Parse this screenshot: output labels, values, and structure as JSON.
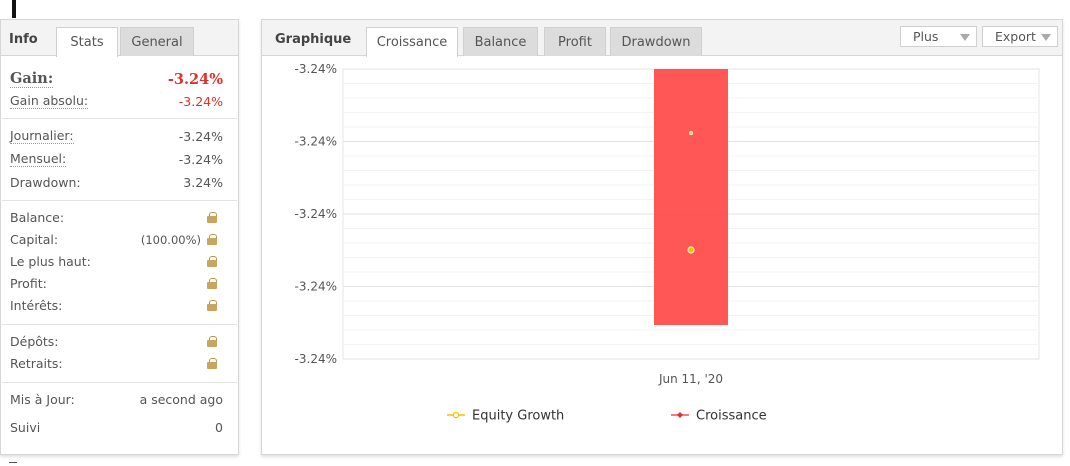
{
  "info": {
    "title": "Info",
    "tabs": [
      {
        "label": "Stats",
        "active": true
      },
      {
        "label": "General",
        "active": false
      }
    ],
    "gain": {
      "label": "Gain:",
      "value": "-3.24%"
    },
    "absolute_gain": {
      "label": "Gain absolu:",
      "value": "-3.24%"
    },
    "daily": {
      "label": "Journalier:",
      "value": "-3.24%"
    },
    "monthly": {
      "label": "Mensuel:",
      "value": "-3.24%"
    },
    "drawdown": {
      "label": "Drawdown:",
      "value": "3.24%"
    },
    "balance": {
      "label": "Balance:"
    },
    "equity": {
      "label": "Capital:",
      "value": "(100.00%)"
    },
    "highest": {
      "label": "Le plus haut:"
    },
    "profit": {
      "label": "Profit:"
    },
    "interest": {
      "label": "Intérêts:"
    },
    "deposits": {
      "label": "Dépôts:"
    },
    "withdrawals": {
      "label": "Retraits:"
    },
    "updated": {
      "label": "Mis à Jour:",
      "value": "a second ago"
    },
    "tracking": {
      "label": "Suivi",
      "value": "0"
    },
    "lock_icon": "lock-icon",
    "accent_red": "#e0302b"
  },
  "chart_panel": {
    "title": "Graphique",
    "tabs": [
      {
        "label": "Croissance",
        "active": true
      },
      {
        "label": "Balance",
        "active": false
      },
      {
        "label": "Profit",
        "active": false
      },
      {
        "label": "Drawdown",
        "active": false
      }
    ],
    "more_label": "Plus",
    "export_label": "Export"
  },
  "chart_data": {
    "type": "bar",
    "categories": [
      "Jun 11, '20"
    ],
    "y_tick_labels": [
      "-3.24%",
      "-3.24%",
      "-3.24%",
      "-3.24%",
      "-3.24%"
    ],
    "series": [
      {
        "name": "Croissance",
        "type": "bar",
        "values": [
          -3.24
        ],
        "color": "#ff4d4d"
      },
      {
        "name": "Equity Growth",
        "type": "line",
        "values": [
          -3.24
        ],
        "color": "#f2c200"
      }
    ],
    "grid": true,
    "legend_position": "bottom-center"
  }
}
